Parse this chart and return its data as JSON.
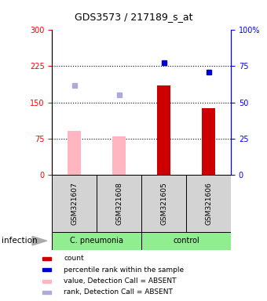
{
  "title": "GDS3573 / 217189_s_at",
  "samples": [
    "GSM321607",
    "GSM321608",
    "GSM321605",
    "GSM321606"
  ],
  "bar_values": [
    90,
    80,
    185,
    138
  ],
  "bar_colors": [
    "#FFB6C1",
    "#FFB6C1",
    "#CC0000",
    "#CC0000"
  ],
  "dot_values": [
    185,
    165,
    233,
    213
  ],
  "dot_colors": [
    "#AAAADD",
    "#AAAADD",
    "#0000CC",
    "#0000CC"
  ],
  "ylim_left": [
    0,
    300
  ],
  "ylim_right": [
    0,
    100
  ],
  "yticks_left": [
    0,
    75,
    150,
    225,
    300
  ],
  "yticks_right": [
    0,
    25,
    50,
    75,
    100
  ],
  "ytick_labels_right": [
    "0",
    "25",
    "50",
    "75",
    "100%"
  ],
  "dotted_lines": [
    75,
    150,
    225
  ],
  "sample_panel_color": "#D3D3D3",
  "group_panel_color": "#90EE90",
  "groups": [
    {
      "label": "C. pneumonia",
      "start": 0,
      "end": 2
    },
    {
      "label": "control",
      "start": 2,
      "end": 4
    }
  ],
  "legend": [
    {
      "label": "count",
      "color": "#CC0000"
    },
    {
      "label": "percentile rank within the sample",
      "color": "#0000CC"
    },
    {
      "label": "value, Detection Call = ABSENT",
      "color": "#FFB6C1"
    },
    {
      "label": "rank, Detection Call = ABSENT",
      "color": "#AAAADD"
    }
  ],
  "bar_width": 0.3,
  "marker_size": 5
}
